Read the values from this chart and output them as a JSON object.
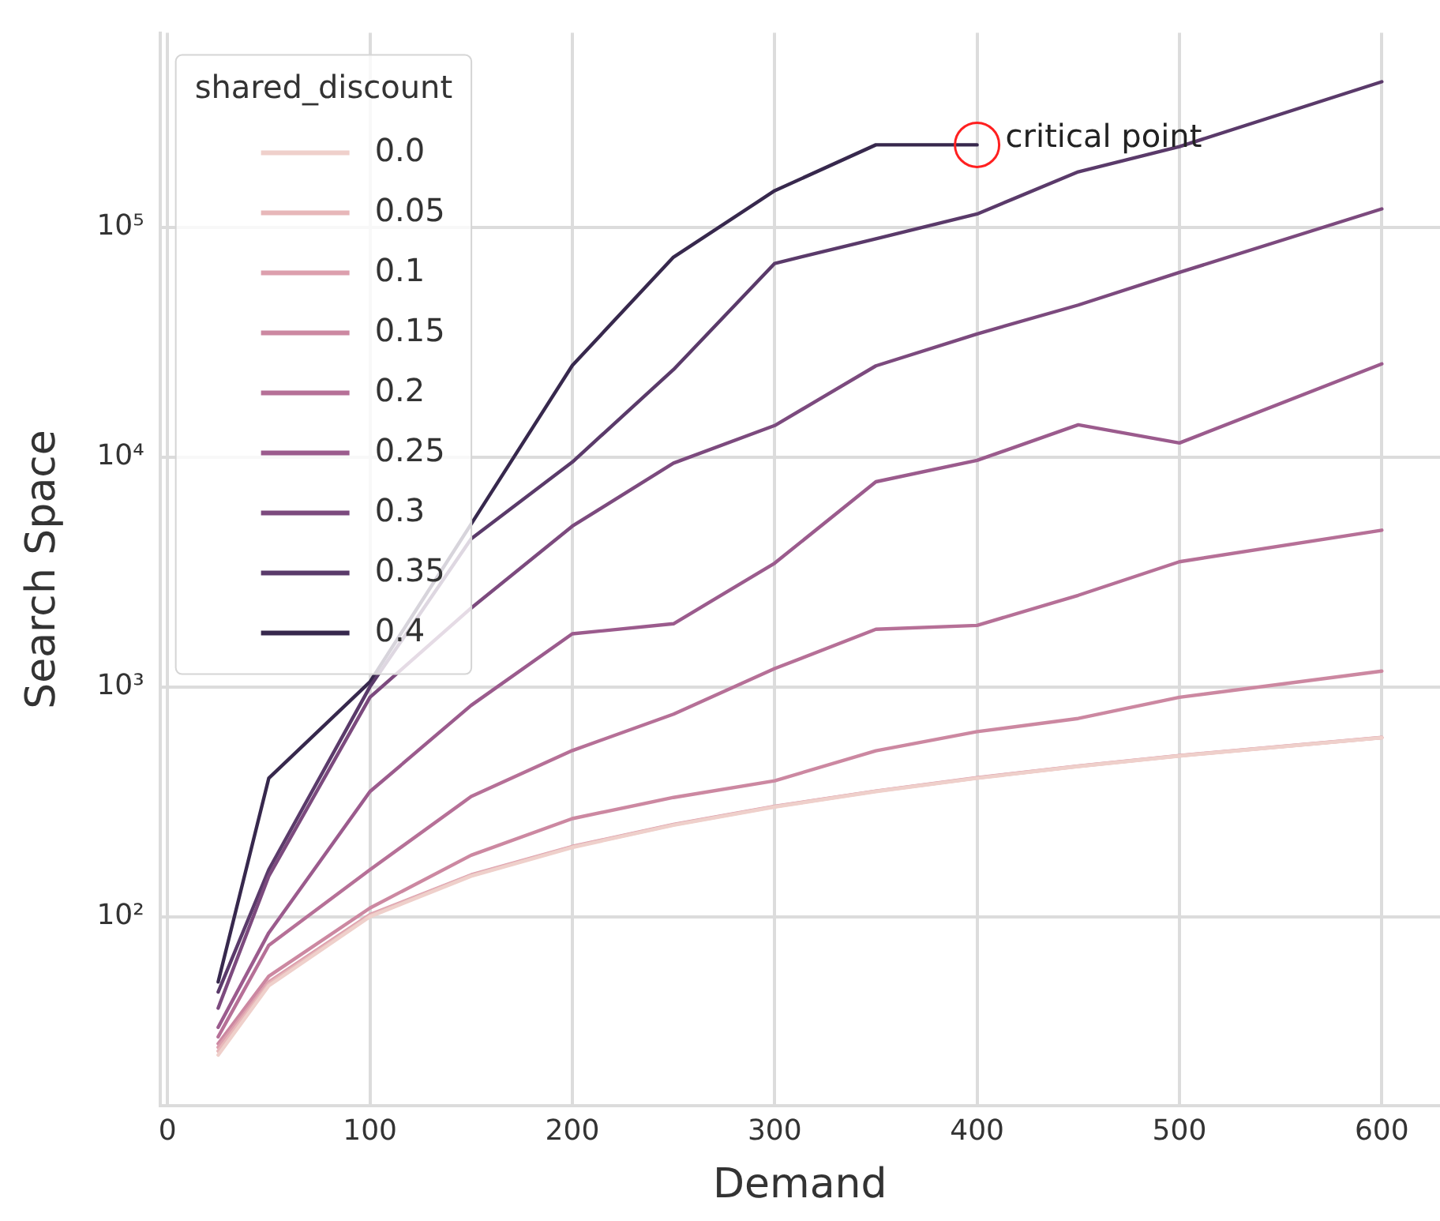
{
  "chart_data": {
    "type": "line",
    "xlabel": "Demand",
    "ylabel": "Search Space",
    "legend_title": "shared_discount",
    "legend": "top left",
    "grid": true,
    "log": "y",
    "marker": "none",
    "x": [
      25,
      50,
      100,
      150,
      200,
      250,
      300,
      350,
      400,
      450,
      500,
      600
    ],
    "xlim": [
      -3.75,
      628.75
    ],
    "xticks": [
      0,
      100,
      200,
      300,
      400,
      500,
      600
    ],
    "ylim": [
      15,
      700000
    ],
    "yticks": [
      {
        "value": 100,
        "label": "10²"
      },
      {
        "value": 1000,
        "label": "10³"
      },
      {
        "value": 10000,
        "label": "10⁴"
      },
      {
        "value": 100000,
        "label": "10⁵"
      }
    ],
    "series": [
      {
        "name": "0.0",
        "color": "#efd0cb",
        "values": [
          25,
          50,
          100,
          150,
          200,
          250,
          300,
          350,
          400,
          450,
          500,
          600
        ]
      },
      {
        "name": "0.05",
        "color": "#e7b7b9",
        "values": [
          26,
          51,
          101,
          151,
          201,
          251,
          301,
          351,
          401,
          451,
          501,
          601
        ]
      },
      {
        "name": "0.1",
        "color": "#dc9fad",
        "values": [
          27,
          52,
          102,
          152,
          202,
          252,
          302,
          352,
          402,
          452,
          502,
          602
        ]
      },
      {
        "name": "0.15",
        "color": "#cc88a1",
        "values": [
          28,
          55,
          109,
          185,
          267,
          330,
          390,
          527,
          638,
          728,
          900,
          1170
        ]
      },
      {
        "name": "0.2",
        "color": "#b67097",
        "values": [
          30,
          75,
          160,
          333,
          528,
          760,
          1200,
          1780,
          1850,
          2500,
          3500,
          4800
        ]
      },
      {
        "name": "0.25",
        "color": "#9b5b8d",
        "values": [
          33,
          85,
          350,
          830,
          1700,
          1880,
          3450,
          7800,
          9660,
          13800,
          11500,
          25400
        ]
      },
      {
        "name": "0.3",
        "color": "#7c4a7e",
        "values": [
          40,
          150,
          900,
          2200,
          5000,
          9400,
          13700,
          24900,
          34300,
          45800,
          63500,
          120000
        ]
      },
      {
        "name": "0.35",
        "color": "#5a3a6a",
        "values": [
          47,
          160,
          1000,
          4400,
          9500,
          24000,
          69500,
          89000,
          114000,
          174000,
          224000,
          429000
        ]
      },
      {
        "name": "0.4",
        "color": "#37284d",
        "values": [
          52,
          400,
          1050,
          5100,
          25000,
          74000,
          144000,
          228000,
          228000,
          null,
          null,
          null
        ]
      }
    ],
    "annotations": [
      {
        "text": "critical point",
        "x": 400,
        "y": 228000
      }
    ]
  }
}
